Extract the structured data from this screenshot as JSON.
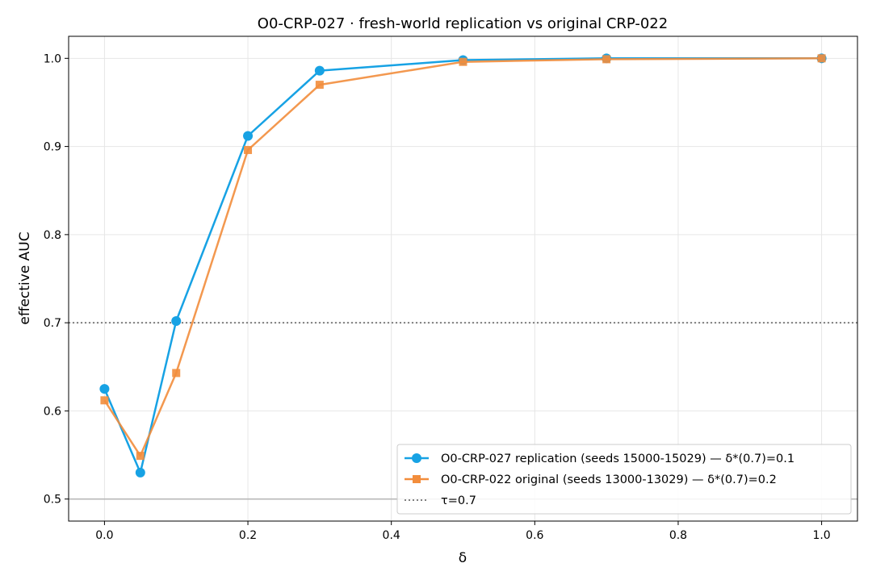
{
  "chart_data": {
    "type": "line",
    "title": "O0-CRP-027 · fresh-world replication vs original CRP-022",
    "xlabel": "δ",
    "ylabel": "effective AUC",
    "xlim": [
      -0.05,
      1.05
    ],
    "ylim": [
      0.475,
      1.025
    ],
    "x_ticks": [
      0.0,
      0.2,
      0.4,
      0.6,
      0.8,
      1.0
    ],
    "x_tick_labels": [
      "0.0",
      "0.2",
      "0.4",
      "0.6",
      "0.8",
      "1.0"
    ],
    "y_ticks": [
      0.5,
      0.6,
      0.7,
      0.8,
      0.9,
      1.0
    ],
    "y_tick_labels": [
      "0.5",
      "0.6",
      "0.7",
      "0.8",
      "0.9",
      "1.0"
    ],
    "grid": true,
    "legend_position": "lower-right",
    "x": [
      0.0,
      0.05,
      0.1,
      0.2,
      0.3,
      0.5,
      0.7,
      1.0
    ],
    "series": [
      {
        "name": "O0-CRP-027 replication (seeds 15000-15029) — δ*(0.7)=0.1",
        "marker": "circle",
        "color": "#17a2e4",
        "values": [
          0.625,
          0.53,
          0.702,
          0.912,
          0.986,
          0.998,
          1.0,
          1.0
        ]
      },
      {
        "name": "O0-CRP-022 original (seeds 13000-13029) — δ*(0.7)=0.2",
        "marker": "square",
        "color": "#f28d3c",
        "values": [
          0.612,
          0.549,
          0.643,
          0.896,
          0.97,
          0.996,
          0.999,
          1.0
        ]
      }
    ],
    "reference_lines": [
      {
        "name": "τ=0.7",
        "y": 0.7,
        "style": "dotted",
        "color": "#7f7f7f",
        "in_legend": true
      },
      {
        "y": 0.5,
        "style": "solid",
        "color": "#b8b8b8",
        "in_legend": false
      }
    ]
  }
}
